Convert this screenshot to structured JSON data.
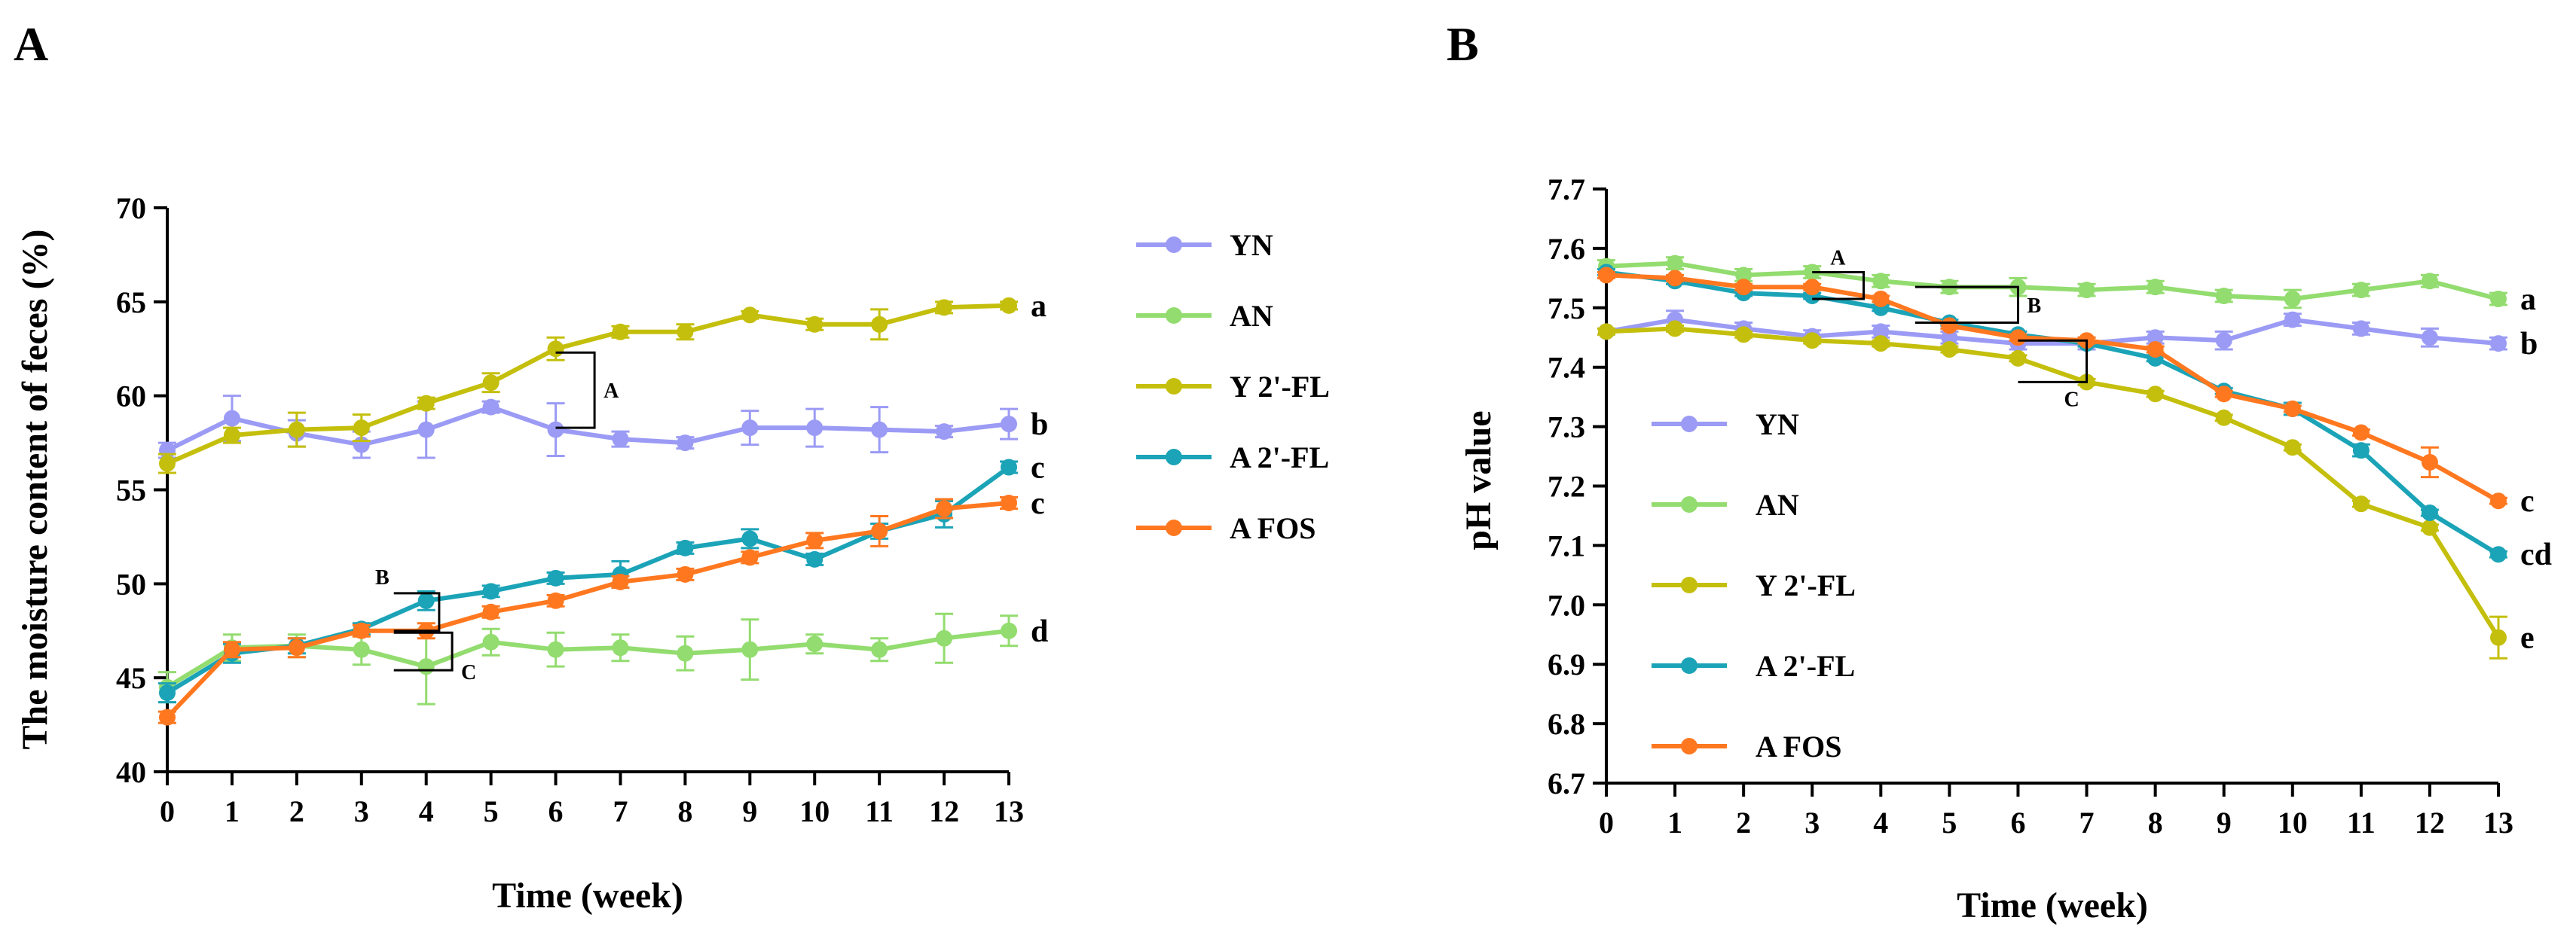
{
  "figure": {
    "panels": [
      "A",
      "B"
    ]
  },
  "chart_data": [
    {
      "panel": "A",
      "type": "line",
      "title": "",
      "xlabel": "Time (week)",
      "ylabel": "The moisture content of feces (%)",
      "x": [
        0,
        1,
        2,
        3,
        4,
        5,
        6,
        7,
        8,
        9,
        10,
        11,
        12,
        13
      ],
      "xticks": [
        "0",
        "1",
        "2",
        "3",
        "4",
        "5",
        "6",
        "7",
        "8",
        "9",
        "10",
        "11",
        "12",
        "13"
      ],
      "yticks": [
        "40",
        "45",
        "50",
        "55",
        "60",
        "65",
        "70"
      ],
      "xlim": [
        0,
        13
      ],
      "ylim": [
        40,
        70
      ],
      "legend_position": "right",
      "series": [
        {
          "name": "YN",
          "color": "#9b9bf5",
          "values": [
            57.1,
            58.8,
            58.0,
            57.4,
            58.2,
            59.4,
            58.2,
            57.7,
            57.5,
            58.3,
            58.3,
            58.2,
            58.1,
            58.5
          ],
          "errors": [
            0.4,
            1.2,
            0.7,
            0.7,
            1.5,
            0.3,
            1.4,
            0.4,
            0.3,
            0.9,
            1.0,
            1.2,
            0.3,
            0.8
          ],
          "significance": "b"
        },
        {
          "name": "AN",
          "color": "#93dc6f",
          "values": [
            44.5,
            46.6,
            46.7,
            46.5,
            45.6,
            46.9,
            46.5,
            46.6,
            46.3,
            46.5,
            46.8,
            46.5,
            47.1,
            47.5
          ],
          "errors": [
            0.8,
            0.7,
            0.6,
            0.8,
            2.0,
            0.7,
            0.9,
            0.7,
            0.9,
            1.6,
            0.5,
            0.6,
            1.3,
            0.8
          ],
          "significance": "d"
        },
        {
          "name": "Y 2'-FL",
          "color": "#c4bf0c",
          "values": [
            56.4,
            57.9,
            58.2,
            58.3,
            59.6,
            60.7,
            62.5,
            63.4,
            63.4,
            64.3,
            63.8,
            63.8,
            64.7,
            64.8
          ],
          "errors": [
            0.5,
            0.4,
            0.9,
            0.7,
            0.3,
            0.5,
            0.6,
            0.3,
            0.4,
            0.2,
            0.3,
            0.8,
            0.3,
            0.2
          ],
          "significance": "a"
        },
        {
          "name": "A 2'-FL",
          "color": "#1ba3b7",
          "values": [
            44.2,
            46.3,
            46.7,
            47.6,
            49.1,
            49.6,
            50.3,
            50.5,
            51.9,
            52.4,
            51.3,
            52.8,
            53.7,
            56.2
          ],
          "errors": [
            0.5,
            0.5,
            0.4,
            0.3,
            0.5,
            0.3,
            0.3,
            0.7,
            0.3,
            0.5,
            0.3,
            0.4,
            0.7,
            0.3
          ],
          "significance": "c"
        },
        {
          "name": "A FOS",
          "color": "#ff7820",
          "values": [
            42.9,
            46.5,
            46.6,
            47.5,
            47.5,
            48.5,
            49.1,
            50.1,
            50.5,
            51.4,
            52.3,
            52.8,
            54.0,
            54.3
          ],
          "errors": [
            0.3,
            0.4,
            0.5,
            0.3,
            0.4,
            0.3,
            0.3,
            0.3,
            0.3,
            0.3,
            0.4,
            0.8,
            0.5,
            0.3
          ],
          "significance": "c"
        }
      ],
      "brackets": [
        {
          "label": "A",
          "x_from": 6,
          "x_to": 6.6,
          "y_from": 58.3,
          "y_to": 62.3
        },
        {
          "label": "B",
          "x_from": 3.5,
          "x_to": 4.2,
          "y_from": 47.5,
          "y_to": 49.5
        },
        {
          "label": "C",
          "x_from": 3.5,
          "x_to": 4.4,
          "y_from": 45.4,
          "y_to": 47.4
        }
      ]
    },
    {
      "panel": "B",
      "type": "line",
      "title": "",
      "xlabel": "Time (week)",
      "ylabel": "pH value",
      "x": [
        0,
        1,
        2,
        3,
        4,
        5,
        6,
        7,
        8,
        9,
        10,
        11,
        12,
        13
      ],
      "xticks": [
        "0",
        "1",
        "2",
        "3",
        "4",
        "5",
        "6",
        "7",
        "8",
        "9",
        "10",
        "11",
        "12",
        "13"
      ],
      "yticks": [
        "6.7",
        "6.8",
        "6.9",
        "7.0",
        "7.1",
        "7.2",
        "7.3",
        "7.4",
        "7.5",
        "7.6",
        "7.7"
      ],
      "xlim": [
        0,
        13
      ],
      "ylim": [
        6.7,
        7.7
      ],
      "legend_position": "left-middle",
      "series": [
        {
          "name": "YN",
          "color": "#9b9bf5",
          "values": [
            7.46,
            7.48,
            7.465,
            7.452,
            7.46,
            7.45,
            7.44,
            7.44,
            7.45,
            7.445,
            7.48,
            7.465,
            7.45,
            7.44
          ],
          "errors": [
            0.005,
            0.015,
            0.01,
            0.01,
            0.01,
            0.01,
            0.01,
            0.01,
            0.01,
            0.015,
            0.01,
            0.01,
            0.015,
            0.01
          ],
          "significance": "b"
        },
        {
          "name": "AN",
          "color": "#93dc6f",
          "values": [
            7.57,
            7.575,
            7.555,
            7.56,
            7.545,
            7.535,
            7.535,
            7.53,
            7.535,
            7.52,
            7.515,
            7.53,
            7.545,
            7.515
          ],
          "errors": [
            0.01,
            0.01,
            0.01,
            0.01,
            0.01,
            0.01,
            0.015,
            0.01,
            0.01,
            0.01,
            0.015,
            0.01,
            0.01,
            0.01
          ],
          "significance": "a"
        },
        {
          "name": "Y 2'-FL",
          "color": "#c4bf0c",
          "values": [
            7.46,
            7.465,
            7.455,
            7.445,
            7.44,
            7.43,
            7.415,
            7.375,
            7.355,
            7.315,
            7.265,
            7.17,
            7.13,
            6.945
          ],
          "errors": [
            0.005,
            0.005,
            0.005,
            0.005,
            0.005,
            0.005,
            0.005,
            0.005,
            0.005,
            0.005,
            0.005,
            0.005,
            0.005,
            0.035
          ],
          "significance": "e"
        },
        {
          "name": "A 2'-FL",
          "color": "#1ba3b7",
          "values": [
            7.56,
            7.545,
            7.525,
            7.52,
            7.5,
            7.475,
            7.455,
            7.44,
            7.415,
            7.36,
            7.33,
            7.26,
            7.155,
            7.085
          ],
          "errors": [
            0.005,
            0.005,
            0.005,
            0.005,
            0.005,
            0.005,
            0.005,
            0.005,
            0.005,
            0.005,
            0.01,
            0.01,
            0.005,
            0.005
          ],
          "significance": "cd"
        },
        {
          "name": "A FOS",
          "color": "#ff7820",
          "values": [
            7.555,
            7.55,
            7.535,
            7.535,
            7.515,
            7.47,
            7.45,
            7.445,
            7.43,
            7.355,
            7.33,
            7.29,
            7.24,
            7.175
          ],
          "errors": [
            0.005,
            0.005,
            0.005,
            0.005,
            0.005,
            0.005,
            0.005,
            0.005,
            0.005,
            0.005,
            0.005,
            0.005,
            0.025,
            0.005
          ],
          "significance": "c"
        }
      ],
      "brackets": [
        {
          "label": "A",
          "x_from": 3,
          "x_to": 3.75,
          "y_from": 7.56,
          "y_to": 7.515
        },
        {
          "label": "B",
          "x_from": 4.5,
          "x_to": 6.0,
          "y_from": 7.535,
          "y_to": 7.475
        },
        {
          "label": "C",
          "x_from": 6,
          "x_to": 7.0,
          "y_from": 7.445,
          "y_to": 7.375
        }
      ]
    }
  ]
}
